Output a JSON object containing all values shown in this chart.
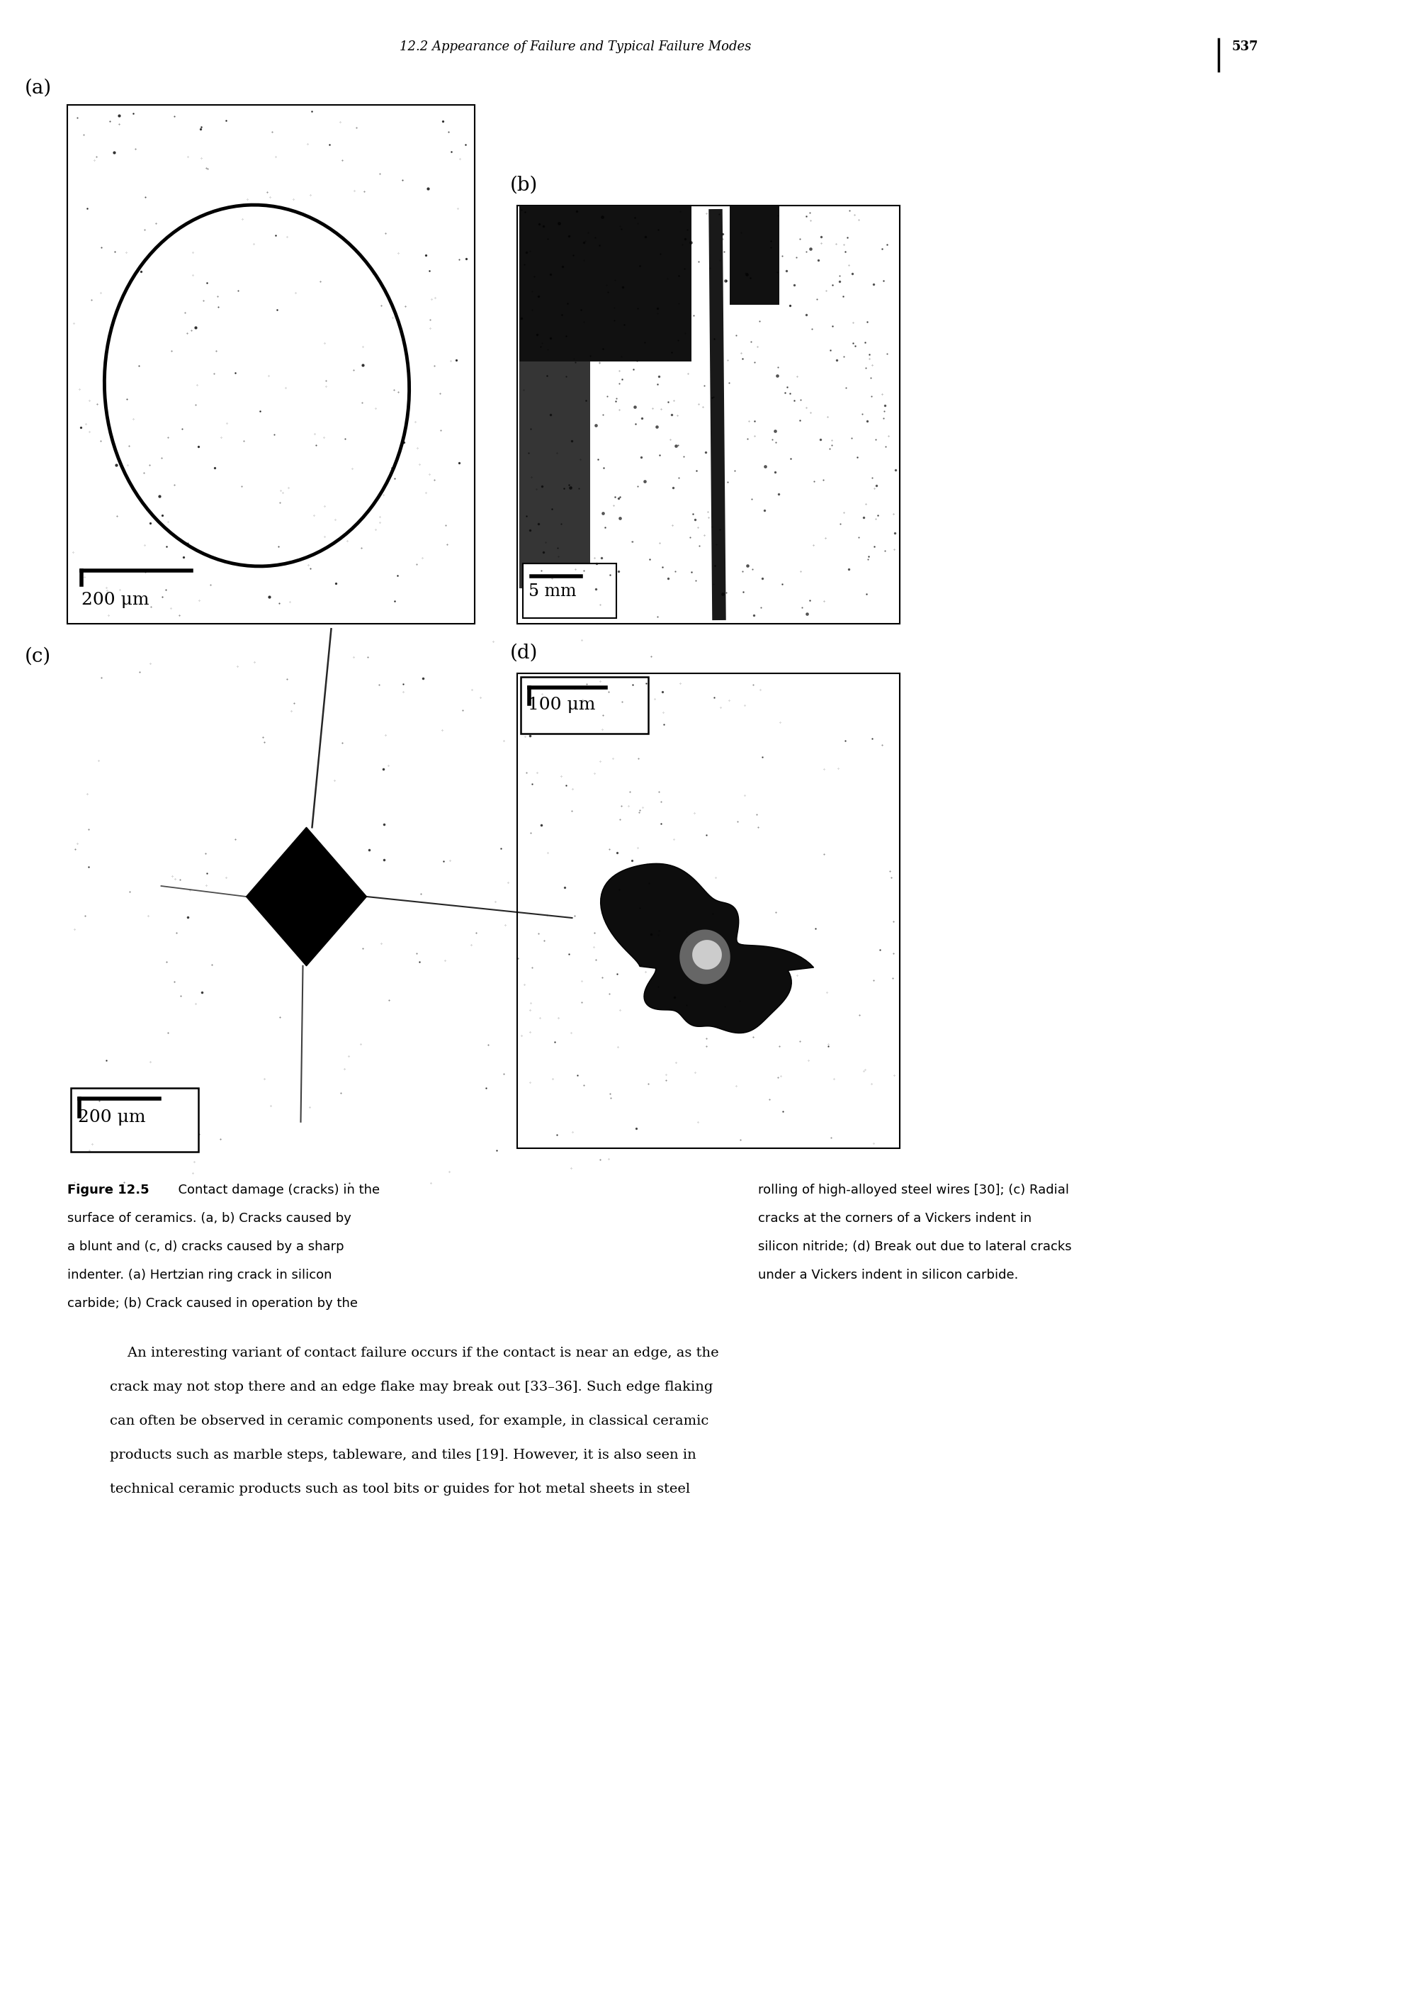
{
  "page_header": "12.2 Appearance of Failure and Typical Failure Modes",
  "page_number": "537",
  "background_color": "#ffffff",
  "label_a": "(a)",
  "label_b": "(b)",
  "label_c": "(c)",
  "label_d": "(d)",
  "scale_bar_a": "200 μm",
  "scale_bar_b": "5 mm",
  "scale_bar_c": "200 μm",
  "scale_bar_d": "100 μm",
  "figure_label_bold": "Figure 12.5",
  "caption_left_line1": "  Contact damage (cracks) in the",
  "caption_left_line2": "surface of ceramics. (a, b) Cracks caused by",
  "caption_left_line3": "a blunt and (c, d) cracks caused by a sharp",
  "caption_left_line4": "indenter. (a) Hertzian ring crack in silicon",
  "caption_left_line5": "carbide; (b) Crack caused in operation by the",
  "caption_right_line1": "rolling of high-alloyed steel wires [30]; (c) Radial",
  "caption_right_line2": "cracks at the corners of a Vickers indent in",
  "caption_right_line3": "silicon nitride; (d) Break out due to lateral cracks",
  "caption_right_line4": "under a Vickers indent in silicon carbide.",
  "body_line1": "    An interesting variant of contact failure occurs if the contact is near an edge, as the",
  "body_line2": "crack may not stop there and an edge flake may break out [33–36]. Such edge flaking",
  "body_line3": "can often be observed in ceramic components used, for example, in classical ceramic",
  "body_line4": "products such as marble steps, tableware, and tiles [19]. However, it is also seen in",
  "body_line5": "technical ceramic products such as tool bits or guides for hot metal sheets in steel"
}
